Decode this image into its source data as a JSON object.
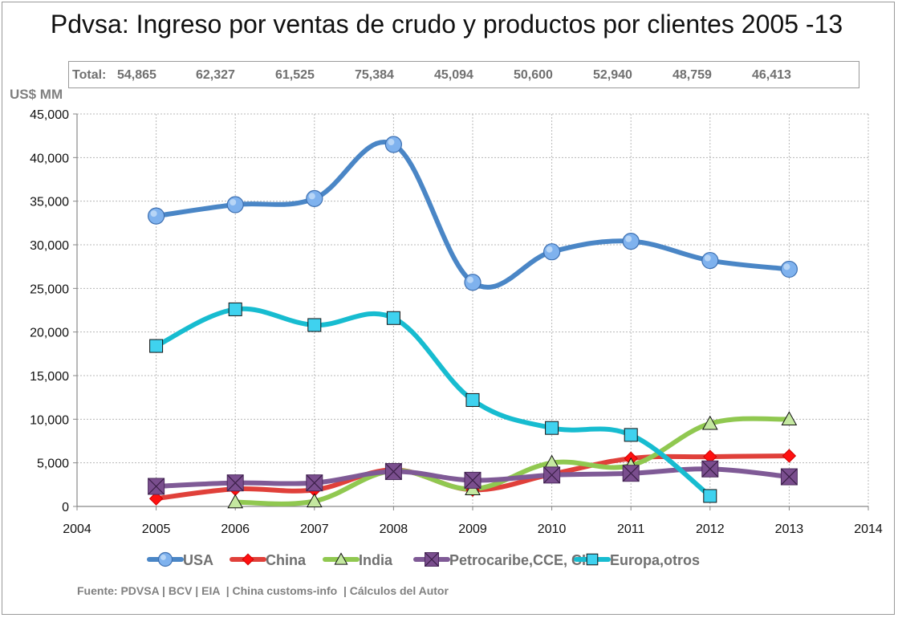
{
  "chart_data": {
    "type": "line",
    "title": "Pdvsa: Ingreso por ventas de crudo y productos por clientes 2005 -13",
    "ylabel": "US$ MM",
    "xlabel": "",
    "xlim": [
      2004,
      2014
    ],
    "ylim": [
      0,
      45000
    ],
    "x_ticks": [
      "2004",
      "2005",
      "2006",
      "2007",
      "2008",
      "2009",
      "2010",
      "2011",
      "2012",
      "2013",
      "2014"
    ],
    "y_ticks": [
      "0",
      "5,000",
      "10,000",
      "15,000",
      "20,000",
      "25,000",
      "30,000",
      "35,000",
      "40,000",
      "45,000"
    ],
    "grid": true,
    "legend_position": "bottom",
    "totals": {
      "label": "Total:",
      "values": [
        "54,865",
        "62,327",
        "61,525",
        "75,384",
        "45,094",
        "50,600",
        "52,940",
        "48,759",
        "46,413"
      ]
    },
    "series": [
      {
        "name": "USA",
        "color": "#4a86c6",
        "marker": "circle",
        "x": [
          2005,
          2006,
          2007,
          2008,
          2009,
          2010,
          2011,
          2012,
          2013
        ],
        "values": [
          33300,
          34600,
          35300,
          41500,
          25700,
          29200,
          30400,
          28200,
          27200
        ]
      },
      {
        "name": "China",
        "color": "#e0403a",
        "marker": "diamond",
        "x": [
          2005,
          2006,
          2007,
          2008,
          2009,
          2010,
          2011,
          2012,
          2013
        ],
        "values": [
          900,
          2000,
          1900,
          4200,
          1900,
          3700,
          5500,
          5700,
          5800
        ]
      },
      {
        "name": "India",
        "color": "#90c850",
        "marker": "triangle",
        "x": [
          2006,
          2007,
          2008,
          2009,
          2010,
          2011,
          2012,
          2013
        ],
        "values": [
          500,
          600,
          4100,
          2000,
          5000,
          4700,
          9500,
          10000
        ]
      },
      {
        "name": "Petrocaribe,CCE, CIC",
        "color": "#7f5a96",
        "marker": "square-x",
        "x": [
          2005,
          2006,
          2007,
          2008,
          2009,
          2010,
          2011,
          2012,
          2013
        ],
        "values": [
          2300,
          2700,
          2700,
          4000,
          3000,
          3600,
          3800,
          4300,
          3400
        ]
      },
      {
        "name": "Europa,otros",
        "color": "#17bcd0",
        "marker": "square",
        "x": [
          2005,
          2006,
          2007,
          2008,
          2009,
          2010,
          2011,
          2012
        ],
        "values": [
          18400,
          22600,
          20800,
          21600,
          12200,
          9000,
          8200,
          1200
        ]
      }
    ]
  },
  "source": "Fuente: PDVSA | BCV | EIA  | China customs-info  | Cálculos del Autor"
}
